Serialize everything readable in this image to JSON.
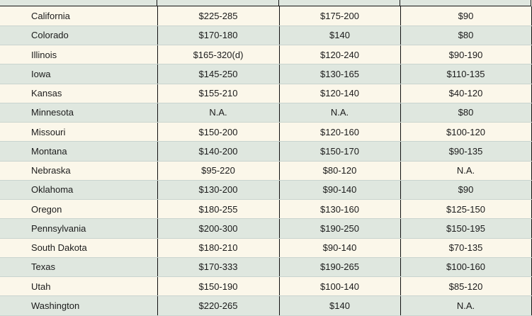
{
  "table": {
    "rows": [
      {
        "state": "California",
        "c1": "$225-285",
        "c2": "$175-200",
        "c3": "$90"
      },
      {
        "state": "Colorado",
        "c1": "$170-180",
        "c2": "$140",
        "c3": "$80"
      },
      {
        "state": "Illinois",
        "c1": "$165-320(d)",
        "c2": "$120-240",
        "c3": "$90-190"
      },
      {
        "state": "Iowa",
        "c1": "$145-250",
        "c2": "$130-165",
        "c3": "$110-135"
      },
      {
        "state": "Kansas",
        "c1": "$155-210",
        "c2": "$120-140",
        "c3": "$40-120"
      },
      {
        "state": "Minnesota",
        "c1": "N.A.",
        "c2": "N.A.",
        "c3": "$80"
      },
      {
        "state": "Missouri",
        "c1": "$150-200",
        "c2": "$120-160",
        "c3": "$100-120"
      },
      {
        "state": "Montana",
        "c1": "$140-200",
        "c2": "$150-170",
        "c3": "$90-135"
      },
      {
        "state": "Nebraska",
        "c1": "$95-220",
        "c2": "$80-120",
        "c3": "N.A."
      },
      {
        "state": "Oklahoma",
        "c1": "$130-200",
        "c2": "$90-140",
        "c3": "$90"
      },
      {
        "state": "Oregon",
        "c1": "$180-255",
        "c2": "$130-160",
        "c3": "$125-150"
      },
      {
        "state": "Pennsylvania",
        "c1": "$200-300",
        "c2": "$190-250",
        "c3": "$150-195"
      },
      {
        "state": "South Dakota",
        "c1": "$180-210",
        "c2": "$90-140",
        "c3": "$70-135"
      },
      {
        "state": "Texas",
        "c1": "$170-333",
        "c2": "$190-265",
        "c3": "$100-160"
      },
      {
        "state": "Utah",
        "c1": "$150-190",
        "c2": "$100-140",
        "c3": "$85-120"
      },
      {
        "state": "Washington",
        "c1": "$220-265",
        "c2": "$140",
        "c3": "N.A."
      }
    ]
  }
}
